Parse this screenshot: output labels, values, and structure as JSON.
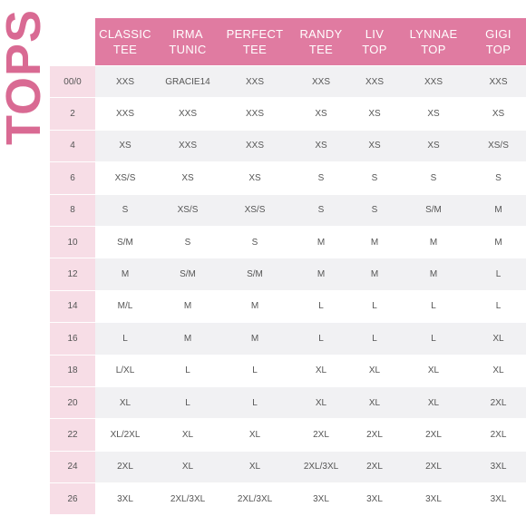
{
  "title": "TOPS",
  "columns": [
    [
      "CLASSIC",
      "TEE"
    ],
    [
      "IRMA",
      "TUNIC"
    ],
    [
      "PERFECT",
      "TEE"
    ],
    [
      "RANDY",
      "TEE"
    ],
    [
      "LIV",
      "TOP"
    ],
    [
      "LYNNAE",
      "TOP"
    ],
    [
      "GIGI",
      "TOP"
    ]
  ],
  "rows": [
    {
      "size": "00/0",
      "values": [
        "XXS",
        "GRACIE14",
        "XXS",
        "XXS",
        "XXS",
        "XXS",
        "XXS"
      ]
    },
    {
      "size": "2",
      "values": [
        "XXS",
        "XXS",
        "XXS",
        "XS",
        "XS",
        "XS",
        "XS"
      ]
    },
    {
      "size": "4",
      "values": [
        "XS",
        "XXS",
        "XXS",
        "XS",
        "XS",
        "XS",
        "XS/S"
      ]
    },
    {
      "size": "6",
      "values": [
        "XS/S",
        "XS",
        "XS",
        "S",
        "S",
        "S",
        "S"
      ]
    },
    {
      "size": "8",
      "values": [
        "S",
        "XS/S",
        "XS/S",
        "S",
        "S",
        "S/M",
        "M"
      ]
    },
    {
      "size": "10",
      "values": [
        "S/M",
        "S",
        "S",
        "M",
        "M",
        "M",
        "M"
      ]
    },
    {
      "size": "12",
      "values": [
        "M",
        "S/M",
        "S/M",
        "M",
        "M",
        "M",
        "L"
      ]
    },
    {
      "size": "14",
      "values": [
        "M/L",
        "M",
        "M",
        "L",
        "L",
        "L",
        "L"
      ]
    },
    {
      "size": "16",
      "values": [
        "L",
        "M",
        "M",
        "L",
        "L",
        "L",
        "XL"
      ]
    },
    {
      "size": "18",
      "values": [
        "L/XL",
        "L",
        "L",
        "XL",
        "XL",
        "XL",
        "XL"
      ]
    },
    {
      "size": "20",
      "values": [
        "XL",
        "L",
        "L",
        "XL",
        "XL",
        "XL",
        "2XL"
      ]
    },
    {
      "size": "22",
      "values": [
        "XL/2XL",
        "XL",
        "XL",
        "2XL",
        "2XL",
        "2XL",
        "2XL"
      ]
    },
    {
      "size": "24",
      "values": [
        "2XL",
        "XL",
        "XL",
        "2XL/3XL",
        "2XL",
        "2XL",
        "3XL"
      ]
    },
    {
      "size": "26",
      "values": [
        "3XL",
        "2XL/3XL",
        "2XL/3XL",
        "3XL",
        "3XL",
        "3XL",
        "3XL"
      ]
    }
  ]
}
